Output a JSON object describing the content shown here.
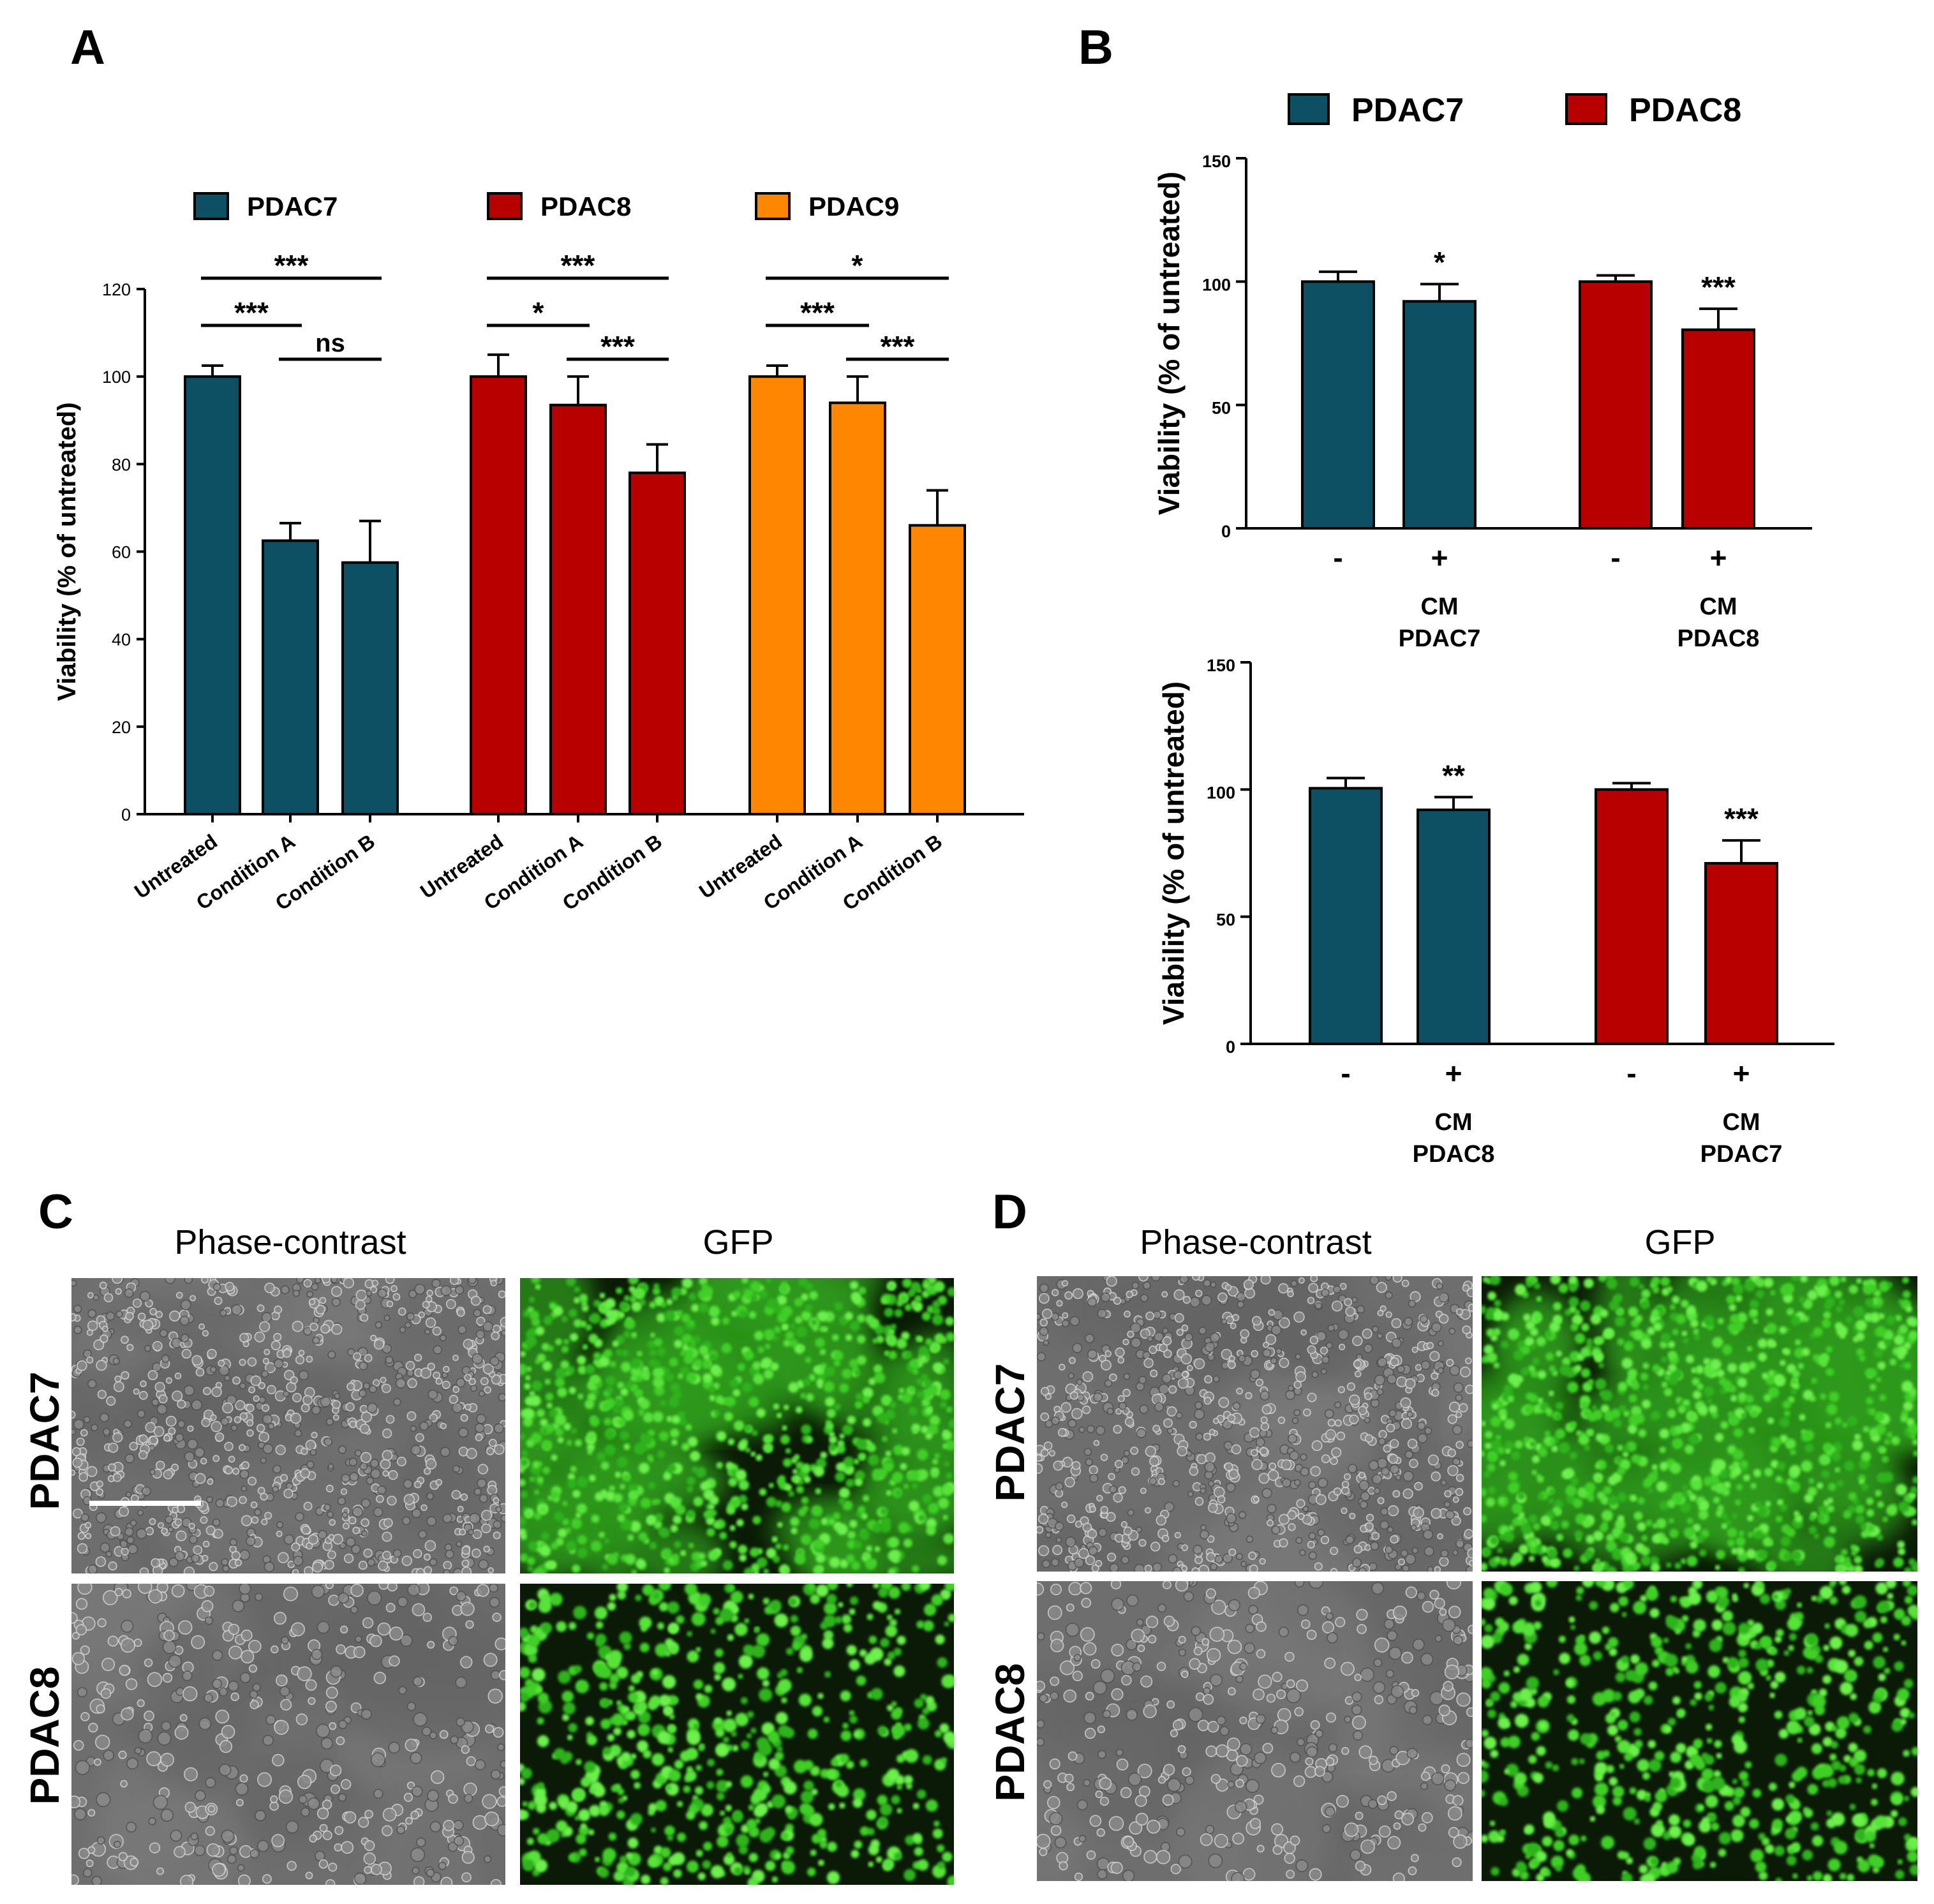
{
  "figure": {
    "panel_letters": [
      "A",
      "B",
      "C",
      "D"
    ]
  },
  "colors": {
    "pdac7": "#0d4f63",
    "pdac8": "#b80000",
    "pdac9": "#ff8600",
    "gfp_bg": "#0a1a06",
    "gfp_cell": "#46d62c",
    "phase_bg": "#6e6e6e"
  },
  "chart_data": [
    {
      "id": "A",
      "type": "bar",
      "ylabel": "Viability (% of untreated)",
      "ylim": [
        0,
        120
      ],
      "yticks": [
        0,
        20,
        40,
        60,
        80,
        100,
        120
      ],
      "legend": [
        "PDAC7",
        "PDAC8",
        "PDAC9"
      ],
      "categories": [
        "Untreated",
        "Condition A",
        "Condition B"
      ],
      "series": [
        {
          "name": "PDAC7",
          "values": [
            100,
            62.5,
            57.5
          ],
          "errors": [
            2.5,
            4,
            9.5
          ]
        },
        {
          "name": "PDAC8",
          "values": [
            100,
            93.5,
            78
          ],
          "errors": [
            5,
            6.5,
            6.5
          ]
        },
        {
          "name": "PDAC9",
          "values": [
            100,
            94,
            66
          ],
          "errors": [
            2.5,
            6,
            8
          ]
        }
      ],
      "significance": [
        {
          "series": 0,
          "from": 0,
          "to": 2,
          "label": "***"
        },
        {
          "series": 0,
          "from": 0,
          "to": 1,
          "label": "***"
        },
        {
          "series": 0,
          "from": 1,
          "to": 2,
          "label": "ns"
        },
        {
          "series": 1,
          "from": 0,
          "to": 2,
          "label": "***"
        },
        {
          "series": 1,
          "from": 0,
          "to": 1,
          "label": "*"
        },
        {
          "series": 1,
          "from": 1,
          "to": 2,
          "label": "***"
        },
        {
          "series": 2,
          "from": 0,
          "to": 2,
          "label": "*"
        },
        {
          "series": 2,
          "from": 0,
          "to": 1,
          "label": "***"
        },
        {
          "series": 2,
          "from": 1,
          "to": 2,
          "label": "***"
        }
      ]
    },
    {
      "id": "B-top",
      "type": "bar",
      "ylabel": "Viability (% of untreated)",
      "ylim": [
        0,
        150
      ],
      "yticks": [
        0,
        50,
        100,
        150
      ],
      "legend": [
        "PDAC7",
        "PDAC8"
      ],
      "groups": [
        {
          "cell": "PDAC7",
          "ticks": [
            "-",
            "+"
          ],
          "cm": [
            "CM",
            "PDAC7"
          ],
          "values": [
            100,
            92
          ],
          "errors": [
            4,
            7
          ],
          "sig": [
            "",
            "*"
          ]
        },
        {
          "cell": "PDAC8",
          "ticks": [
            "-",
            "+"
          ],
          "cm": [
            "CM",
            "PDAC8"
          ],
          "values": [
            100,
            80.5
          ],
          "errors": [
            2.5,
            8.5
          ],
          "sig": [
            "",
            "***"
          ]
        }
      ]
    },
    {
      "id": "B-bottom",
      "type": "bar",
      "ylabel": "Viability (% of untreated)",
      "ylim": [
        0,
        150
      ],
      "yticks": [
        0,
        50,
        100,
        150
      ],
      "groups": [
        {
          "cell": "PDAC7",
          "ticks": [
            "-",
            "+"
          ],
          "cm": [
            "CM",
            "PDAC8"
          ],
          "values": [
            100.5,
            92
          ],
          "errors": [
            4,
            5
          ],
          "sig": [
            "",
            "**"
          ]
        },
        {
          "cell": "PDAC8",
          "ticks": [
            "-",
            "+"
          ],
          "cm": [
            "CM",
            "PDAC7"
          ],
          "values": [
            100,
            71
          ],
          "errors": [
            2.5,
            9
          ],
          "sig": [
            "",
            "***"
          ]
        }
      ]
    }
  ],
  "micrographs": {
    "C": {
      "columns": [
        "Phase-contrast",
        "GFP"
      ],
      "rows": [
        "PDAC7",
        "PDAC8"
      ]
    },
    "D": {
      "columns": [
        "Phase-contrast",
        "GFP"
      ],
      "rows": [
        "PDAC7",
        "PDAC8"
      ]
    }
  }
}
